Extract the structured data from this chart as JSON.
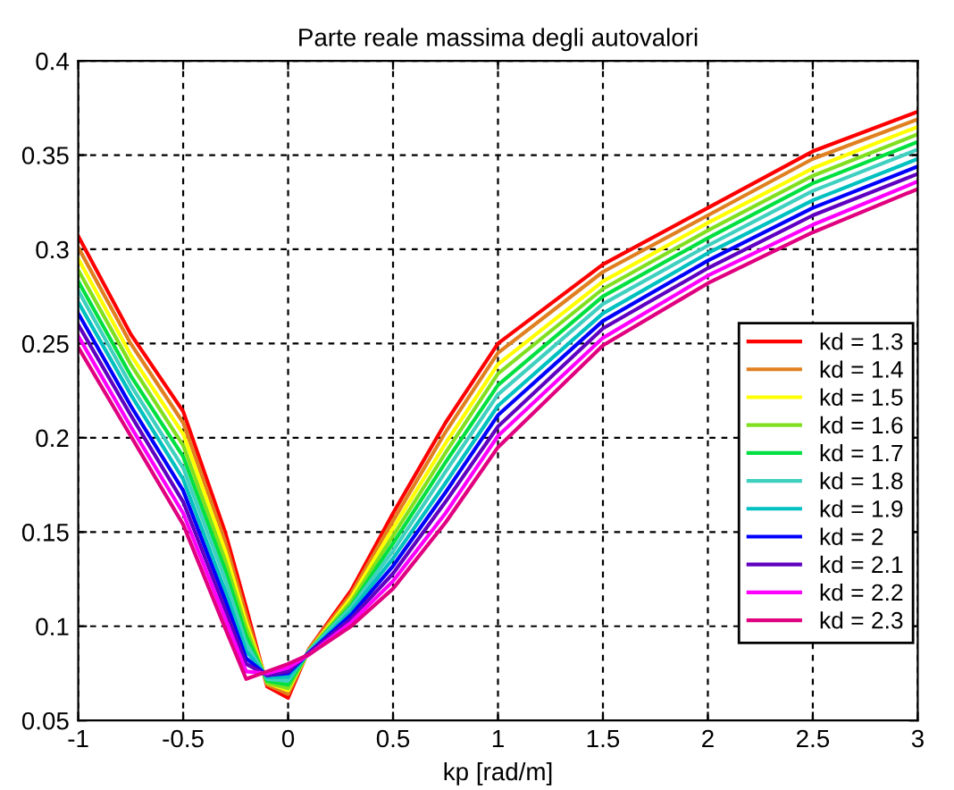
{
  "chart_data": {
    "type": "line",
    "title": "Parte reale massima degli autovalori",
    "xlabel": "kp [rad/m]",
    "x": [
      -1,
      -0.75,
      -0.5,
      -0.3,
      -0.2,
      -0.1,
      0,
      0.1,
      0.3,
      0.5,
      0.75,
      1,
      1.5,
      2,
      2.5,
      3
    ],
    "xlim": [
      -1,
      3
    ],
    "xticks": [
      -1,
      -0.5,
      0,
      0.5,
      1,
      1.5,
      2,
      2.5,
      3
    ],
    "ylim": [
      0.05,
      0.4
    ],
    "yticks": [
      0.05,
      0.1,
      0.15,
      0.2,
      0.25,
      0.3,
      0.35,
      0.4
    ],
    "grid": true,
    "legend": "right",
    "line_style": "solid",
    "marker": "none",
    "series": [
      {
        "name": "kd = 1.3",
        "color": "#ff0000",
        "values": [
          0.307,
          0.255,
          0.214,
          0.15,
          0.11,
          0.068,
          0.062,
          0.088,
          0.119,
          0.16,
          0.208,
          0.25,
          0.292,
          0.322,
          0.352,
          0.373
        ]
      },
      {
        "name": "kd = 1.4",
        "color": "#e08020",
        "values": [
          0.301,
          0.25,
          0.208,
          0.145,
          0.106,
          0.069,
          0.064,
          0.088,
          0.117,
          0.156,
          0.203,
          0.245,
          0.288,
          0.318,
          0.348,
          0.369
        ]
      },
      {
        "name": "kd = 1.5",
        "color": "#ffff00",
        "values": [
          0.295,
          0.244,
          0.202,
          0.14,
          0.102,
          0.07,
          0.066,
          0.087,
          0.115,
          0.152,
          0.197,
          0.239,
          0.283,
          0.314,
          0.343,
          0.365
        ]
      },
      {
        "name": "kd = 1.6",
        "color": "#80e020",
        "values": [
          0.289,
          0.239,
          0.196,
          0.135,
          0.099,
          0.07,
          0.067,
          0.087,
          0.113,
          0.148,
          0.192,
          0.234,
          0.279,
          0.31,
          0.339,
          0.361
        ]
      },
      {
        "name": "kd = 1.7",
        "color": "#00e040",
        "values": [
          0.283,
          0.233,
          0.19,
          0.13,
          0.095,
          0.071,
          0.069,
          0.087,
          0.111,
          0.144,
          0.187,
          0.228,
          0.275,
          0.306,
          0.335,
          0.357
        ]
      },
      {
        "name": "kd = 1.8",
        "color": "#40d0c0",
        "values": [
          0.278,
          0.228,
          0.184,
          0.125,
          0.091,
          0.072,
          0.071,
          0.087,
          0.11,
          0.14,
          0.182,
          0.223,
          0.271,
          0.302,
          0.331,
          0.353
        ]
      },
      {
        "name": "kd = 1.9",
        "color": "#00c0c0",
        "values": [
          0.272,
          0.223,
          0.178,
          0.119,
          0.087,
          0.073,
          0.073,
          0.086,
          0.108,
          0.136,
          0.176,
          0.217,
          0.266,
          0.298,
          0.326,
          0.348
        ]
      },
      {
        "name": "kd = 2",
        "color": "#0000ff",
        "values": [
          0.266,
          0.217,
          0.172,
          0.114,
          0.083,
          0.074,
          0.075,
          0.086,
          0.106,
          0.132,
          0.171,
          0.212,
          0.262,
          0.294,
          0.322,
          0.344
        ]
      },
      {
        "name": "kd = 2.1",
        "color": "#6000c0",
        "values": [
          0.26,
          0.212,
          0.166,
          0.109,
          0.08,
          0.074,
          0.076,
          0.086,
          0.104,
          0.128,
          0.166,
          0.206,
          0.258,
          0.29,
          0.318,
          0.34
        ]
      },
      {
        "name": "kd = 2.2",
        "color": "#ff00ff",
        "values": [
          0.254,
          0.206,
          0.16,
          0.104,
          0.076,
          0.075,
          0.078,
          0.085,
          0.102,
          0.124,
          0.16,
          0.201,
          0.253,
          0.286,
          0.313,
          0.336
        ]
      },
      {
        "name": "kd = 2.3",
        "color": "#e00080",
        "values": [
          0.248,
          0.201,
          0.154,
          0.099,
          0.072,
          0.076,
          0.08,
          0.085,
          0.1,
          0.12,
          0.155,
          0.195,
          0.249,
          0.282,
          0.309,
          0.332
        ]
      }
    ]
  }
}
